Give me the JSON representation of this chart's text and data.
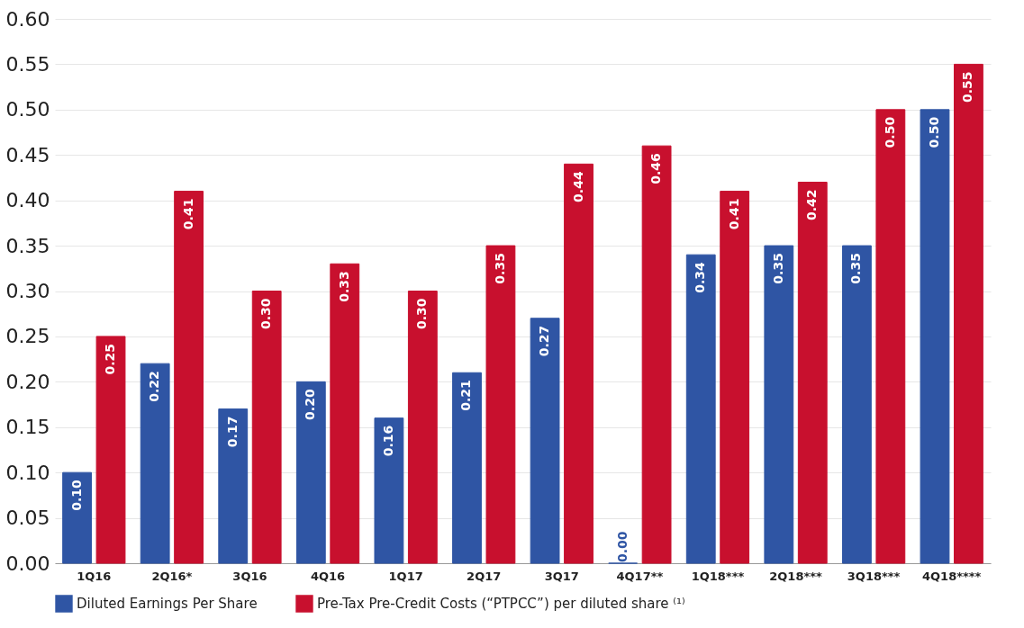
{
  "chart_data": {
    "type": "bar",
    "categories": [
      "1Q16",
      "2Q16*",
      "3Q16",
      "4Q16",
      "1Q17",
      "2Q17",
      "3Q17",
      "4Q17**",
      "1Q18***",
      "2Q18***",
      "3Q18***",
      "4Q18****"
    ],
    "series": [
      {
        "name": "Diluted Earnings Per Share",
        "color": "#2f55a4",
        "values": [
          0.1,
          0.22,
          0.17,
          0.2,
          0.16,
          0.21,
          0.27,
          0.0,
          0.34,
          0.35,
          0.35,
          0.5
        ],
        "value_labels": [
          "0.10",
          "0.22",
          "0.17",
          "0.20",
          "0.16",
          "0.21",
          "0.27",
          "0.00",
          "0.34",
          "0.35",
          "0.35",
          "0.50"
        ]
      },
      {
        "name": "Pre-Tax Pre-Credit Costs (“PTPCC”) per diluted share ⁽¹⁾",
        "color": "#c8102e",
        "values": [
          0.25,
          0.41,
          0.3,
          0.33,
          0.3,
          0.35,
          0.44,
          0.46,
          0.41,
          0.42,
          0.5,
          0.55
        ],
        "value_labels": [
          "0.25",
          "0.41",
          "0.30",
          "0.33",
          "0.30",
          "0.35",
          "0.44",
          "0.46",
          "0.41",
          "0.42",
          "0.50",
          "0.55"
        ]
      }
    ],
    "ylim": [
      0,
      0.6
    ],
    "yticks": [
      {
        "value": 0,
        "label": "0.00"
      },
      0.05,
      {
        "value": 0.1,
        "label": "0.10"
      },
      0.15,
      {
        "value": 0.2,
        "label": "0.20"
      },
      0.25,
      {
        "value": 0.3,
        "label": "0.30"
      },
      0.35,
      {
        "value": 0.4,
        "label": "0.40"
      },
      0.45,
      {
        "value": 0.5,
        "label": "0.50"
      },
      0.55,
      {
        "value": 0.6,
        "label": "0.60"
      }
    ],
    "grid": "y",
    "legend": "bottom"
  }
}
